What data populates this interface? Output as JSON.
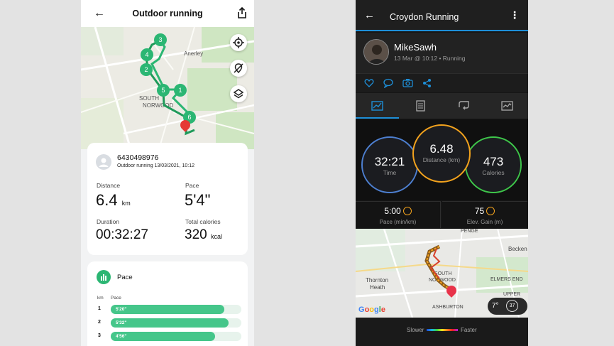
{
  "left_app": {
    "header": {
      "title": "Outdoor running"
    },
    "map": {
      "labels": [
        "Anerley",
        "SOUTH",
        "NORWOOD"
      ],
      "markers": [
        "1",
        "2",
        "3",
        "4",
        "5",
        "6"
      ]
    },
    "summary": {
      "user_id": "6430498976",
      "subtitle": "Outdoor running 13/03/2021, 10:12",
      "distance_label": "Distance",
      "distance_value": "6.4",
      "distance_unit": "km",
      "pace_label": "Pace",
      "pace_value": "5'4\"",
      "duration_label": "Duration",
      "duration_value": "00:32:27",
      "calories_label": "Total calories",
      "calories_value": "320",
      "calories_unit": "kcal"
    },
    "pace_section": {
      "title": "Pace",
      "col_km": "km",
      "col_pace": "Pace",
      "rows": [
        {
          "km": "1",
          "pace": "5'20\"",
          "fraction": 0.87
        },
        {
          "km": "2",
          "pace": "5'32\"",
          "fraction": 0.9
        },
        {
          "km": "3",
          "pace": "4'56\"",
          "fraction": 0.8
        }
      ]
    }
  },
  "right_app": {
    "header": {
      "title": "Croydon Running"
    },
    "profile": {
      "name": "MikeSawh",
      "meta": "13 Mar @ 10:12 • Running"
    },
    "tabs": [
      "chart-icon",
      "document-icon",
      "loop-icon",
      "graph-icon"
    ],
    "stats": {
      "time_value": "32:21",
      "time_label": "Time",
      "distance_value": "6.48",
      "distance_label": "Distance (km)",
      "calories_value": "473",
      "calories_label": "Calories",
      "pace_value": "5:00",
      "pace_label": "Pace (min/km)",
      "elev_value": "75",
      "elev_label": "Elev. Gain (m)"
    },
    "map": {
      "labels": [
        "PENGE",
        "Becken",
        "Thornton",
        "Heath",
        "SOUTH",
        "NORWOOD",
        "ELMERS END",
        "UPPER",
        "ASHBURTON"
      ],
      "attribution": "Google",
      "weather": "7°",
      "weather_badge": "37"
    },
    "legend": {
      "slower": "Slower",
      "faster": "Faster"
    },
    "colors": {
      "accent": "#1e8fd8",
      "time_ring": "#4d7fd0",
      "distance_ring": "#f2a21d",
      "calories_ring": "#3ec64a"
    }
  }
}
